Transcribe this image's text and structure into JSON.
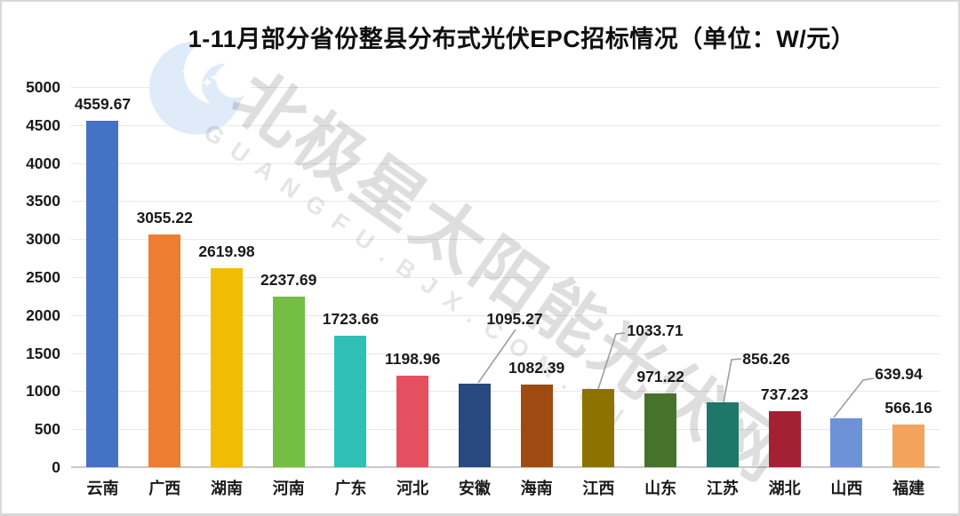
{
  "watermark": {
    "logo": "polaris-moon-logo",
    "text_cn": "北极星太阳能光伏网",
    "text_en": "GUANGFU.BJX.COM.CN"
  },
  "chart_data": {
    "type": "bar",
    "title": "1-11月部分省份整县分布式光伏EPC招标情况（单位：W/元）",
    "unit": "W/元",
    "categories": [
      "云南",
      "广西",
      "湖南",
      "河南",
      "广东",
      "河北",
      "安徽",
      "海南",
      "江西",
      "山东",
      "江苏",
      "湖北",
      "山西",
      "福建"
    ],
    "values": [
      4559.67,
      3055.22,
      2619.98,
      2237.69,
      1723.66,
      1198.96,
      1095.27,
      1082.39,
      1033.71,
      971.22,
      856.26,
      737.23,
      639.94,
      566.16
    ],
    "bar_colors": [
      "#4472C4",
      "#ED7D31",
      "#F1BC04",
      "#73BD45",
      "#2FC0B5",
      "#E4505F",
      "#27497E",
      "#9E4A10",
      "#8E7200",
      "#47722B",
      "#1F7769",
      "#A32133",
      "#6E92D8",
      "#F2A45C"
    ],
    "ylim": [
      0,
      5000
    ],
    "yticks": [
      0,
      500,
      1000,
      1500,
      2000,
      2500,
      3000,
      3500,
      4000,
      4500,
      5000
    ],
    "grid": true,
    "legend": false,
    "callout_labels": [
      "安徽",
      "江西",
      "江苏",
      "山西"
    ],
    "leader_line_color": "#9E9E9E",
    "label_color": "#1a1a1a"
  }
}
